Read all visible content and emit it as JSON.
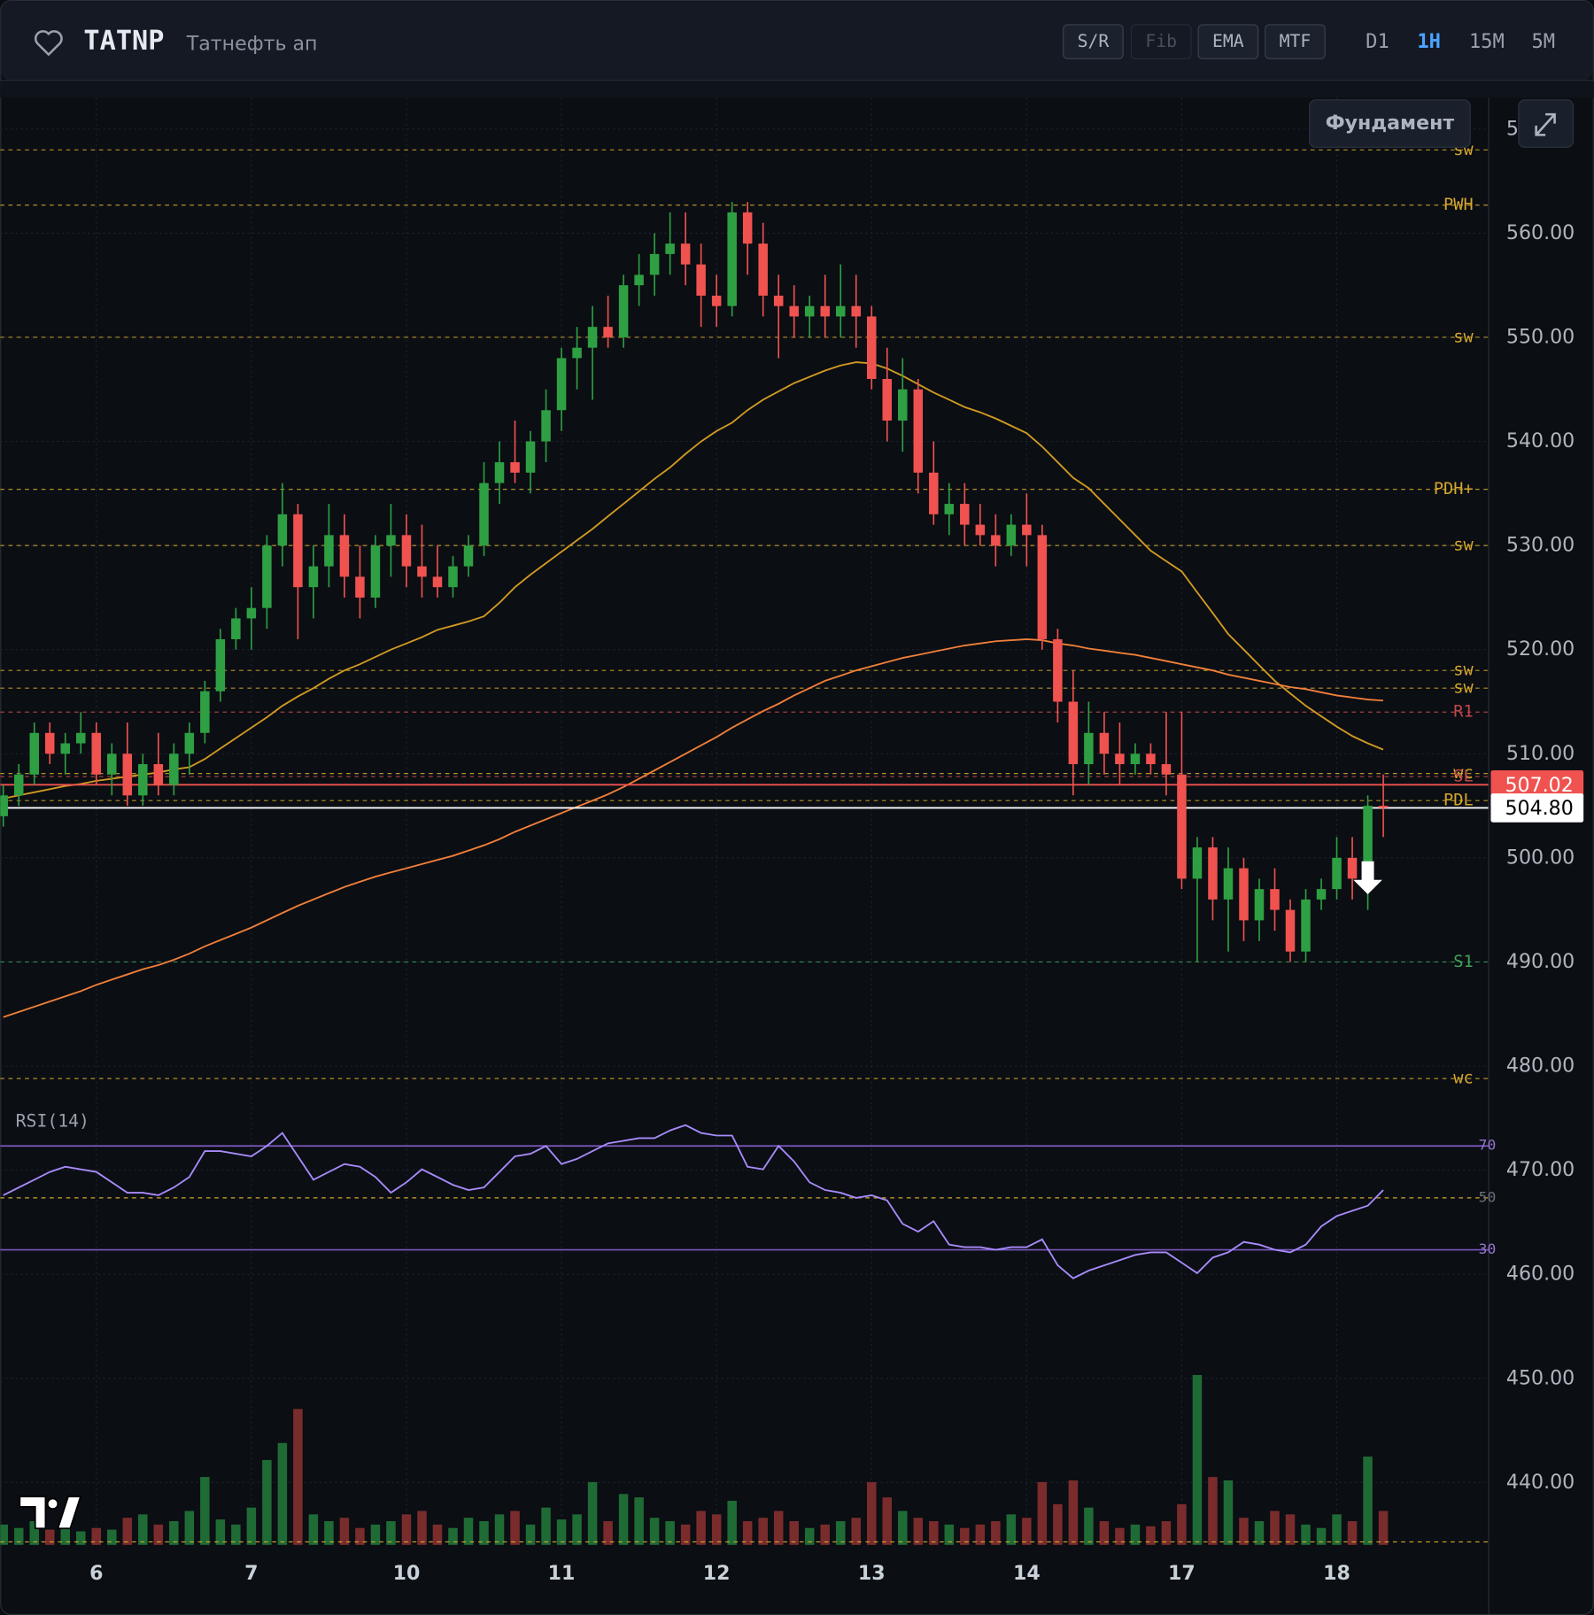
{
  "header": {
    "symbol": "TATNP",
    "name": "Татнефть ап",
    "tools": [
      {
        "label": "S/R",
        "enabled": true
      },
      {
        "label": "Fib",
        "enabled": false
      },
      {
        "label": "EMA",
        "enabled": true
      },
      {
        "label": "MTF",
        "enabled": true
      }
    ],
    "timeframes": [
      "D1",
      "1H",
      "15M",
      "5M"
    ],
    "active_timeframe": 1,
    "fundamentals": "Фундамент"
  },
  "chart_data": {
    "type": "candlestick",
    "up_color": "#2ea043",
    "down_color": "#f0524f",
    "xlim": [
      -0.2,
      95.8
    ],
    "xticks": [
      {
        "value": 6,
        "label": "6"
      },
      {
        "value": 16,
        "label": "7"
      },
      {
        "value": 26,
        "label": "10"
      },
      {
        "value": 36,
        "label": "11"
      },
      {
        "value": 46,
        "label": "12"
      },
      {
        "value": 56,
        "label": "13"
      },
      {
        "value": 66,
        "label": "14"
      },
      {
        "value": 76,
        "label": "17"
      },
      {
        "value": 86,
        "label": "18"
      }
    ],
    "ylim": [
      434,
      573
    ],
    "yticks": [
      {
        "value": 440,
        "label": "440.00"
      },
      {
        "value": 450,
        "label": "450.00"
      },
      {
        "value": 460,
        "label": "460.00"
      },
      {
        "value": 470,
        "label": "470.00"
      },
      {
        "value": 480,
        "label": "480.00"
      },
      {
        "value": 490,
        "label": "490.00"
      },
      {
        "value": 500,
        "label": "500.00"
      },
      {
        "value": 510,
        "label": "510.00"
      },
      {
        "value": 520,
        "label": "520.00"
      },
      {
        "value": 530,
        "label": "530.00"
      },
      {
        "value": 540,
        "label": "540.00"
      },
      {
        "value": 550,
        "label": "550.00"
      },
      {
        "value": 560,
        "label": "560.00"
      },
      {
        "value": 570,
        "label": "570.00"
      }
    ],
    "grid": true,
    "open": [
      504,
      506,
      508,
      512,
      510,
      511,
      512,
      508,
      510,
      506,
      509,
      507,
      510,
      512,
      516,
      521,
      523,
      524,
      530,
      533,
      526,
      528,
      531,
      527,
      525,
      530,
      531,
      528,
      527,
      526,
      528,
      530,
      536,
      538,
      537,
      540,
      543,
      548,
      549,
      551,
      550,
      555,
      556,
      558,
      559,
      557,
      554,
      553,
      562,
      559,
      554,
      553,
      552,
      553,
      552,
      553,
      552,
      546,
      542,
      545,
      537,
      533,
      534,
      532,
      531,
      530,
      532,
      531,
      521,
      515,
      509,
      512,
      510,
      509,
      510,
      509,
      508,
      498,
      501,
      496,
      499,
      494,
      497,
      495,
      491,
      496,
      497,
      500,
      498,
      505
    ],
    "high": [
      507,
      509,
      513,
      513,
      512,
      514,
      513,
      511,
      513,
      510,
      512,
      511,
      513,
      517,
      522,
      524,
      526,
      531,
      536,
      534,
      530,
      534,
      533,
      530,
      531,
      534,
      533,
      532,
      530,
      529,
      531,
      538,
      540,
      542,
      541,
      545,
      549,
      551,
      553,
      554,
      556,
      558,
      560,
      562,
      562,
      559,
      556,
      563,
      563,
      561,
      556,
      555,
      554,
      556,
      557,
      556,
      553,
      549,
      548,
      546,
      540,
      536,
      536,
      534,
      533,
      533,
      535,
      532,
      522,
      518,
      515,
      514,
      513,
      511,
      511,
      514,
      514,
      502,
      502,
      501,
      500,
      498,
      499,
      496,
      497,
      498,
      502,
      502,
      506,
      508
    ],
    "low": [
      503,
      505,
      507,
      509,
      508,
      510,
      507,
      506,
      505,
      505,
      506,
      506,
      508,
      511,
      515,
      520,
      520,
      522,
      528,
      521,
      523,
      526,
      525,
      523,
      524,
      527,
      526,
      525,
      525,
      525,
      527,
      529,
      534,
      536,
      535,
      538,
      541,
      545,
      544,
      549,
      549,
      553,
      554,
      556,
      555,
      551,
      551,
      552,
      556,
      552,
      548,
      550,
      550,
      550,
      550,
      549,
      545,
      540,
      539,
      535,
      532,
      531,
      530,
      530,
      528,
      529,
      528,
      520,
      513,
      506,
      507,
      508,
      507,
      508,
      508,
      506,
      497,
      490,
      494,
      491,
      492,
      492,
      493,
      490,
      490,
      495,
      496,
      496,
      495,
      502
    ],
    "close": [
      506,
      508,
      512,
      510,
      511,
      512,
      508,
      510,
      506,
      509,
      507,
      510,
      512,
      516,
      521,
      523,
      524,
      530,
      533,
      526,
      528,
      531,
      527,
      525,
      530,
      531,
      528,
      527,
      526,
      528,
      530,
      536,
      538,
      537,
      540,
      543,
      548,
      549,
      551,
      550,
      555,
      556,
      558,
      559,
      557,
      554,
      553,
      562,
      559,
      554,
      553,
      552,
      553,
      552,
      553,
      552,
      546,
      542,
      545,
      537,
      533,
      534,
      532,
      531,
      530,
      532,
      531,
      521,
      515,
      509,
      512,
      510,
      509,
      510,
      509,
      508,
      498,
      501,
      496,
      499,
      494,
      497,
      495,
      491,
      496,
      497,
      500,
      498,
      505,
      504.8
    ],
    "volume": [
      12,
      10,
      14,
      9,
      11,
      8,
      10,
      9,
      16,
      18,
      12,
      14,
      20,
      40,
      15,
      12,
      22,
      50,
      60,
      80,
      18,
      14,
      16,
      10,
      12,
      14,
      18,
      20,
      12,
      10,
      16,
      14,
      18,
      20,
      12,
      22,
      15,
      18,
      37,
      14,
      30,
      28,
      16,
      14,
      12,
      20,
      18,
      26,
      14,
      16,
      20,
      14,
      10,
      12,
      14,
      16,
      37,
      28,
      20,
      16,
      14,
      12,
      10,
      12,
      14,
      18,
      16,
      37,
      24,
      38,
      22,
      14,
      10,
      12,
      11,
      14,
      24,
      100,
      40,
      38,
      16,
      14,
      20,
      18,
      12,
      10,
      18,
      14,
      52,
      20
    ],
    "ema": [
      {
        "color": "#d19a22",
        "values": [
          505.7,
          506,
          506.3,
          506.6,
          506.9,
          507.1,
          507.4,
          507.6,
          507.8,
          508,
          508.2,
          508.5,
          508.7,
          509.5,
          510.5,
          511.5,
          512.5,
          513.5,
          514.6,
          515.5,
          516.3,
          517.2,
          518,
          518.6,
          519.3,
          520,
          520.6,
          521.2,
          521.9,
          522.3,
          522.7,
          523.2,
          524.5,
          526,
          527.2,
          528.3,
          529.4,
          530.5,
          531.6,
          532.8,
          534,
          535.2,
          536.4,
          537.5,
          538.8,
          540,
          541,
          541.8,
          543,
          544,
          544.8,
          545.6,
          546.2,
          546.8,
          547.3,
          547.6,
          547.5,
          547,
          546.3,
          545.5,
          544.7,
          544,
          543.3,
          542.8,
          542.2,
          541.5,
          540.8,
          539.5,
          538,
          536.5,
          535.5,
          534,
          532.5,
          531,
          529.5,
          528.5,
          527.5,
          525.5,
          523.5,
          521.5,
          520,
          518.5,
          517,
          515.8,
          514.6,
          513.6,
          512.6,
          511.7,
          511,
          510.4
        ]
      },
      {
        "color": "#f07f3a",
        "values": [
          484.7,
          485.2,
          485.7,
          486.2,
          486.7,
          487.2,
          487.8,
          488.3,
          488.8,
          489.3,
          489.7,
          490.2,
          490.8,
          491.5,
          492.1,
          492.7,
          493.3,
          494,
          494.7,
          495.4,
          496,
          496.6,
          497.2,
          497.7,
          498.2,
          498.6,
          499,
          499.4,
          499.8,
          500.2,
          500.7,
          501.2,
          501.8,
          502.5,
          503.1,
          503.7,
          504.3,
          504.9,
          505.5,
          506.1,
          506.8,
          507.6,
          508.4,
          509.2,
          510,
          510.8,
          511.6,
          512.5,
          513.3,
          514.1,
          514.8,
          515.6,
          516.3,
          517,
          517.5,
          518,
          518.4,
          518.8,
          519.2,
          519.5,
          519.8,
          520.1,
          520.4,
          520.6,
          520.8,
          520.9,
          521,
          520.9,
          520.6,
          520.4,
          520.1,
          519.9,
          519.7,
          519.5,
          519.2,
          518.9,
          518.6,
          518.3,
          518,
          517.6,
          517.3,
          517,
          516.7,
          516.4,
          516.2,
          515.9,
          515.6,
          515.4,
          515.2,
          515.1
        ]
      }
    ],
    "levels": [
      {
        "label": "sw",
        "value": 568,
        "color": "#d4a72c"
      },
      {
        "label": "PWH",
        "value": 562.7,
        "color": "#d4a72c"
      },
      {
        "label": "sw",
        "value": 550,
        "color": "#d4a72c"
      },
      {
        "label": "PDH+",
        "value": 535.4,
        "color": "#d4a72c"
      },
      {
        "label": "sw",
        "value": 530,
        "color": "#d4a72c"
      },
      {
        "label": "sw",
        "value": 518,
        "color": "#d4a72c"
      },
      {
        "label": "sw",
        "value": 516.3,
        "color": "#d4a72c"
      },
      {
        "label": "R1",
        "value": 514,
        "color": "#c0474a"
      },
      {
        "label": "wc",
        "value": 508.1,
        "color": "#d4a72c"
      },
      {
        "label": "SL",
        "value": 507.8,
        "color": "#c0474a"
      },
      {
        "label": "PDL",
        "value": 505.5,
        "color": "#d4a72c"
      },
      {
        "label": "S1",
        "value": 490,
        "color": "#3fa35b"
      },
      {
        "label": "wc",
        "value": 478.8,
        "color": "#d4a72c"
      }
    ],
    "price_lines": [
      {
        "value": 507.02,
        "label": "507.02",
        "color": "#f0524f",
        "text_color": "#ffffff"
      },
      {
        "value": 504.8,
        "label": "504.80",
        "color": "#ffffff",
        "text_color": "#000000"
      }
    ],
    "signals": [
      {
        "x": 88,
        "value": 496.5
      }
    ],
    "rsi": {
      "label": "RSI(14)",
      "color": "#a78bfa",
      "ylim": [
        0,
        100
      ],
      "levels": [
        70,
        50,
        30
      ],
      "values": [
        51,
        54,
        57,
        60,
        62,
        61,
        60,
        56,
        52,
        52,
        51,
        54,
        58,
        68,
        68,
        67,
        66,
        70,
        75,
        66,
        57,
        60,
        63,
        62,
        58,
        52,
        56,
        61,
        58,
        55,
        53,
        54,
        60,
        66,
        67,
        70,
        63,
        65,
        68,
        71,
        72,
        73,
        73,
        76,
        78,
        75,
        74,
        74,
        62,
        61,
        70,
        64,
        56,
        53,
        52,
        50,
        51,
        49,
        40,
        37,
        41,
        32,
        31,
        31,
        30,
        31,
        31,
        34,
        24,
        19,
        22,
        24,
        26,
        28,
        29,
        29,
        25,
        21,
        27,
        29,
        33,
        32,
        30,
        29,
        32,
        39,
        43,
        45,
        47,
        53
      ]
    }
  }
}
